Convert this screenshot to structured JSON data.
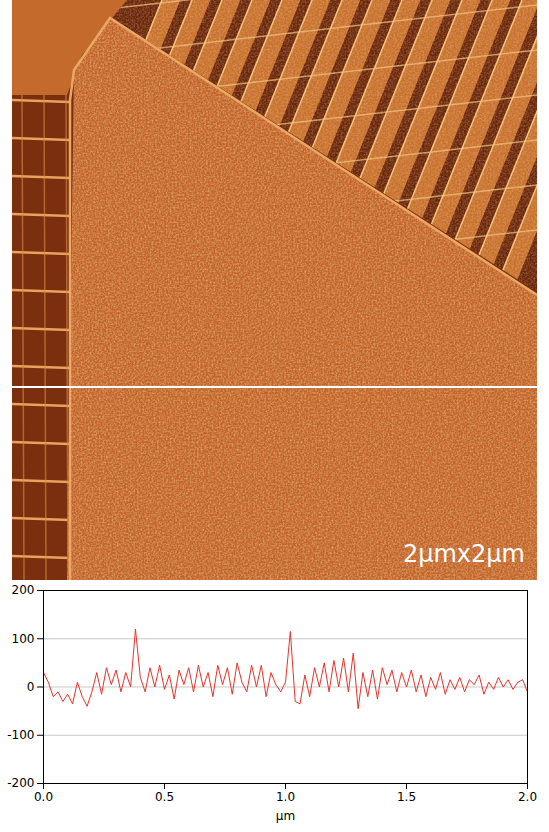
{
  "image": {
    "label": "2μmx2μm"
  },
  "chart_data": {
    "type": "line",
    "x_label": "μm",
    "x": [
      0.0,
      0.02,
      0.04,
      0.06,
      0.08,
      0.1,
      0.12,
      0.14,
      0.16,
      0.18,
      0.2,
      0.22,
      0.24,
      0.26,
      0.28,
      0.3,
      0.32,
      0.34,
      0.36,
      0.38,
      0.4,
      0.42,
      0.44,
      0.46,
      0.48,
      0.5,
      0.52,
      0.54,
      0.56,
      0.58,
      0.6,
      0.62,
      0.64,
      0.66,
      0.68,
      0.7,
      0.72,
      0.74,
      0.76,
      0.78,
      0.8,
      0.82,
      0.84,
      0.86,
      0.88,
      0.9,
      0.92,
      0.94,
      0.96,
      0.98,
      1.0,
      1.02,
      1.04,
      1.06,
      1.08,
      1.1,
      1.12,
      1.14,
      1.16,
      1.18,
      1.2,
      1.22,
      1.24,
      1.26,
      1.28,
      1.3,
      1.32,
      1.34,
      1.36,
      1.38,
      1.4,
      1.42,
      1.44,
      1.46,
      1.48,
      1.5,
      1.52,
      1.54,
      1.56,
      1.58,
      1.6,
      1.62,
      1.64,
      1.66,
      1.68,
      1.7,
      1.72,
      1.74,
      1.76,
      1.78,
      1.8,
      1.82,
      1.84,
      1.86,
      1.88,
      1.9,
      1.92,
      1.94,
      1.96,
      1.98,
      2.0
    ],
    "values": [
      30,
      10,
      -20,
      -10,
      -30,
      -15,
      -35,
      10,
      -20,
      -40,
      -10,
      30,
      -15,
      40,
      5,
      35,
      -10,
      30,
      0,
      120,
      20,
      -10,
      40,
      0,
      45,
      -5,
      25,
      -25,
      35,
      5,
      40,
      -10,
      45,
      0,
      30,
      -20,
      45,
      5,
      40,
      -15,
      50,
      10,
      -10,
      45,
      0,
      45,
      -20,
      30,
      5,
      -10,
      10,
      115,
      -30,
      -35,
      25,
      -20,
      40,
      0,
      50,
      -10,
      55,
      0,
      60,
      -10,
      70,
      -45,
      30,
      -20,
      35,
      -25,
      40,
      5,
      35,
      -10,
      30,
      0,
      35,
      -10,
      25,
      -20,
      20,
      -5,
      30,
      -15,
      15,
      -5,
      20,
      -10,
      15,
      5,
      25,
      -15,
      10,
      -5,
      20,
      0,
      15,
      -5,
      10,
      15,
      -10
    ],
    "color": "#e8322a",
    "xlim": [
      0,
      2
    ],
    "xticks": [
      {
        "value": 0,
        "label": "0.0"
      },
      {
        "value": 0.5,
        "label": "0.5"
      },
      {
        "value": 1,
        "label": "1.0"
      },
      {
        "value": 1.5,
        "label": "1.5"
      },
      {
        "value": 2,
        "label": "2.0"
      }
    ],
    "ylim": [
      -200,
      200
    ],
    "yticks": [
      -200,
      -100,
      0,
      100,
      200
    ],
    "grid": true
  }
}
